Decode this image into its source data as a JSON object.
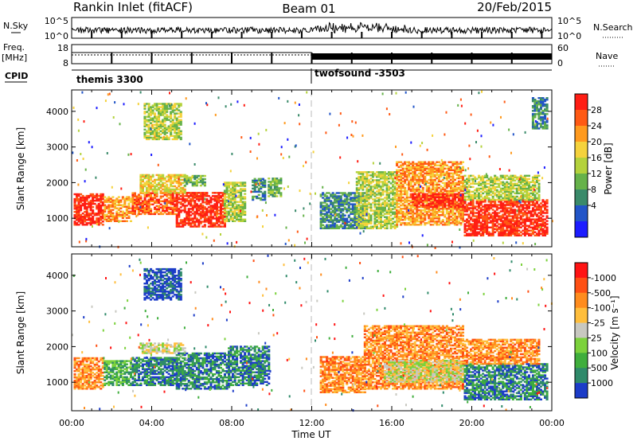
{
  "header": {
    "station": "Rankin Inlet (fitACF)",
    "beam": "Beam 01",
    "date": "20/Feb/2015"
  },
  "panels": {
    "nsky": {
      "label": "N.Sky",
      "right_label": "N.Search",
      "left_ticks": [
        "10^5",
        "10^0"
      ],
      "right_ticks": [
        "10^5",
        "10^0"
      ]
    },
    "freq": {
      "label": "Freq.",
      "unit": "[MHz]",
      "right_label": "Nave",
      "left_ticks": [
        "18",
        "8"
      ],
      "right_ticks": [
        "60",
        "0"
      ]
    },
    "cpid": {
      "label": "CPID",
      "modes": [
        {
          "name": "themis 3300",
          "start_hour": 0,
          "end_hour": 12
        },
        {
          "name": "twofsound -3503",
          "start_hour": 12,
          "end_hour": 24
        }
      ]
    }
  },
  "chart_data": [
    {
      "type": "heatmap",
      "name": "power",
      "xlabel": "",
      "ylabel": "Slant Range [km]",
      "xlim": [
        0,
        24
      ],
      "ylim": [
        200,
        4600
      ],
      "yticks": [
        "1000",
        "2000",
        "3000",
        "4000"
      ],
      "colorbar": {
        "label": "Power [dB]",
        "ticks": [
          "4",
          "8",
          "12",
          "16",
          "20",
          "24",
          "28"
        ],
        "colors": [
          "#1c1cff",
          "#2255c8",
          "#3a8a6a",
          "#66b24a",
          "#b4d23c",
          "#f5d23c",
          "#ff9a1e",
          "#ff5a14",
          "#ff1e14"
        ]
      },
      "regions": [
        {
          "t0": 0.1,
          "t1": 1.6,
          "r0": 800,
          "r1": 1700,
          "level": 8
        },
        {
          "t0": 1.6,
          "t1": 3.0,
          "r0": 900,
          "r1": 1600,
          "level": 6
        },
        {
          "t0": 3.0,
          "t1": 5.2,
          "r0": 1100,
          "r1": 1700,
          "level": 7
        },
        {
          "t0": 5.2,
          "t1": 7.6,
          "r0": 750,
          "r1": 1700,
          "level": 8
        },
        {
          "t0": 7.6,
          "t1": 8.6,
          "r0": 900,
          "r1": 2000,
          "level": 4
        },
        {
          "t0": 3.4,
          "t1": 5.6,
          "r0": 1700,
          "r1": 2200,
          "level": 5
        },
        {
          "t0": 3.6,
          "t1": 5.4,
          "r0": 3200,
          "r1": 4200,
          "level": 4
        },
        {
          "t0": 5.6,
          "t1": 6.6,
          "r0": 1900,
          "r1": 2200,
          "level": 3
        },
        {
          "t0": 9.0,
          "t1": 9.6,
          "r0": 1500,
          "r1": 2100,
          "level": 2
        },
        {
          "t0": 9.8,
          "t1": 10.4,
          "r0": 1600,
          "r1": 2100,
          "level": 3
        },
        {
          "t0": 12.4,
          "t1": 14.6,
          "r0": 700,
          "r1": 1700,
          "level": 2
        },
        {
          "t0": 14.2,
          "t1": 16.2,
          "r0": 700,
          "r1": 2300,
          "level": 4
        },
        {
          "t0": 16.2,
          "t1": 19.6,
          "r0": 800,
          "r1": 2600,
          "level": 6
        },
        {
          "t0": 17.0,
          "t1": 19.6,
          "r0": 1300,
          "r1": 1700,
          "level": 8
        },
        {
          "t0": 19.6,
          "t1": 23.8,
          "r0": 500,
          "r1": 1500,
          "level": 8
        },
        {
          "t0": 19.6,
          "t1": 23.4,
          "r0": 1500,
          "r1": 2200,
          "level": 4
        },
        {
          "t0": 23.0,
          "t1": 23.8,
          "r0": 3500,
          "r1": 4400,
          "level": 2
        }
      ]
    },
    {
      "type": "heatmap",
      "name": "velocity",
      "xlabel": "Time UT",
      "ylabel": "Slant Range [km]",
      "xlim": [
        0,
        24
      ],
      "ylim": [
        200,
        4600
      ],
      "xticks": [
        "00:00",
        "04:00",
        "08:00",
        "12:00",
        "16:00",
        "20:00",
        "00:00"
      ],
      "yticks": [
        "1000",
        "2000",
        "3000",
        "4000"
      ],
      "colorbar": {
        "label": "Velocity [m s⁻¹]",
        "ticks": [
          "1000",
          "500",
          "100",
          "25",
          "-25",
          "-100",
          "-500",
          "-1000"
        ],
        "colors": [
          "#1c3cc8",
          "#2f8a6a",
          "#3fae3c",
          "#7cd23c",
          "#c8c8c0",
          "#ffbe3c",
          "#ff8c1e",
          "#ff5014",
          "#ff1414"
        ]
      },
      "regions": [
        {
          "t0": 0.1,
          "t1": 1.6,
          "r0": 800,
          "r1": 1700,
          "level": 6
        },
        {
          "t0": 1.6,
          "t1": 3.0,
          "r0": 900,
          "r1": 1600,
          "level": 2
        },
        {
          "t0": 3.0,
          "t1": 5.2,
          "r0": 900,
          "r1": 1700,
          "level": 1
        },
        {
          "t0": 3.4,
          "t1": 5.6,
          "r0": 1800,
          "r1": 2100,
          "level": 4
        },
        {
          "t0": 5.2,
          "t1": 7.8,
          "r0": 800,
          "r1": 1800,
          "level": 1
        },
        {
          "t0": 7.8,
          "t1": 9.8,
          "r0": 900,
          "r1": 2000,
          "level": 1
        },
        {
          "t0": 3.6,
          "t1": 5.4,
          "r0": 3300,
          "r1": 4200,
          "level": 0
        },
        {
          "t0": 12.4,
          "t1": 14.6,
          "r0": 700,
          "r1": 1700,
          "level": 6
        },
        {
          "t0": 14.6,
          "t1": 19.6,
          "r0": 800,
          "r1": 2600,
          "level": 6
        },
        {
          "t0": 15.6,
          "t1": 19.6,
          "r0": 1000,
          "r1": 1600,
          "level": 4
        },
        {
          "t0": 19.6,
          "t1": 23.8,
          "r0": 500,
          "r1": 1500,
          "level": 1
        },
        {
          "t0": 19.6,
          "t1": 23.4,
          "r0": 1500,
          "r1": 2200,
          "level": 6
        }
      ]
    }
  ]
}
